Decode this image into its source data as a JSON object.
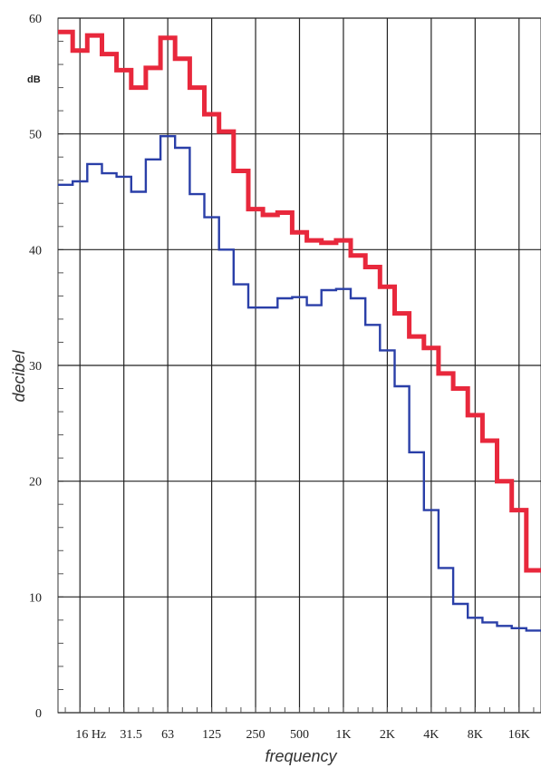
{
  "chart_data": {
    "type": "line",
    "step": true,
    "ylabel": "decibel",
    "xlabel": "frequency",
    "unit_label": "dB",
    "ylim": [
      0,
      60
    ],
    "yticks": [
      0,
      10,
      20,
      30,
      40,
      50,
      60
    ],
    "grid": true,
    "x_tick_labels": [
      "16 Hz",
      "31.5",
      "63",
      "125",
      "250",
      "500",
      "1K",
      "2K",
      "4K",
      "8K",
      "16K"
    ],
    "x_bands": [
      "12.5",
      "16",
      "20",
      "25",
      "31.5",
      "40",
      "50",
      "63",
      "80",
      "100",
      "125",
      "160",
      "200",
      "250",
      "315",
      "400",
      "500",
      "630",
      "800",
      "1K",
      "1.25K",
      "1.6K",
      "2K",
      "2.5K",
      "3.15K",
      "4K",
      "5K",
      "6.3K",
      "8K",
      "10K",
      "12.5K",
      "16K",
      "20K"
    ],
    "series": [
      {
        "color": "#e8283c",
        "values": [
          58.8,
          57.2,
          58.5,
          56.9,
          55.5,
          54.0,
          55.7,
          58.3,
          56.5,
          54.0,
          51.7,
          50.2,
          46.8,
          43.5,
          43.0,
          43.2,
          41.5,
          40.8,
          40.6,
          40.8,
          39.5,
          38.5,
          36.8,
          34.5,
          32.5,
          31.5,
          29.3,
          28.0,
          25.7,
          23.5,
          20.0,
          17.5,
          12.3
        ]
      },
      {
        "color": "#2a3fa8",
        "values": [
          45.6,
          45.9,
          47.4,
          46.6,
          46.3,
          45.0,
          47.8,
          49.8,
          48.8,
          44.8,
          42.8,
          40.0,
          37.0,
          35.0,
          35.0,
          35.8,
          35.9,
          35.2,
          36.5,
          36.6,
          35.8,
          33.5,
          31.3,
          28.2,
          22.5,
          17.5,
          12.5,
          9.4,
          8.2,
          7.8,
          7.5,
          7.3,
          7.1
        ]
      }
    ]
  }
}
